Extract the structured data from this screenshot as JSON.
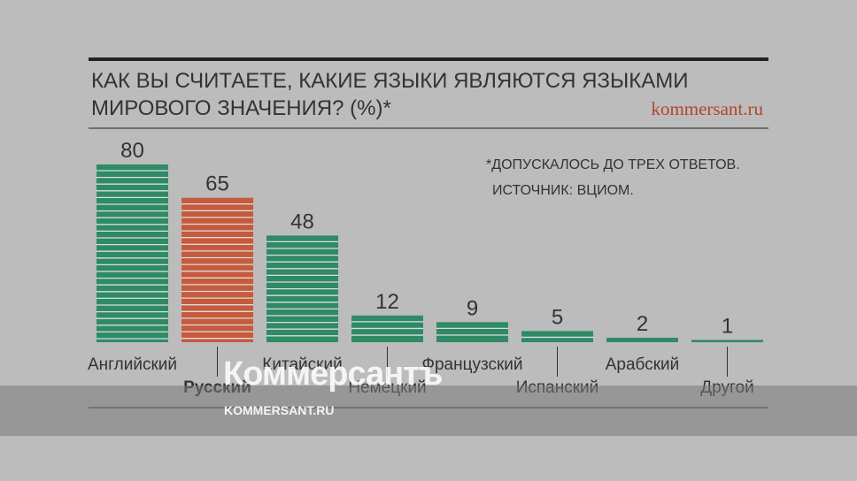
{
  "chart_data": {
    "type": "bar",
    "title_line1": "КАК ВЫ СЧИТАЕТЕ, КАКИЕ ЯЗЫКИ ЯВЛЯЮТСЯ ЯЗЫКАМИ",
    "title_line2": "МИРОВОГО ЗНАЧЕНИЯ? (%)*",
    "source_site": "kommersant.ru",
    "note_line1": "*ДОПУСКАЛОСЬ ДО ТРЕХ ОТВЕТОВ.",
    "note_line2": "ИСТОЧНИК: ВЦИОМ.",
    "categories": [
      "Английский",
      "Русский",
      "Китайский",
      "Немецкий",
      "Французский",
      "Испанский",
      "Арабский",
      "Другой"
    ],
    "values": [
      80,
      65,
      48,
      12,
      9,
      5,
      2,
      1
    ],
    "highlight_index": 1,
    "colors": {
      "default": "#2f8a66",
      "highlight": "#c65a3c",
      "text": "#333333",
      "accent": "#b5442a",
      "rule": "#222222"
    },
    "ylim": [
      0,
      80
    ],
    "grid": false
  },
  "watermark": {
    "logo": "Коммерсантъ",
    "url": "KOMMERSANT.RU"
  }
}
